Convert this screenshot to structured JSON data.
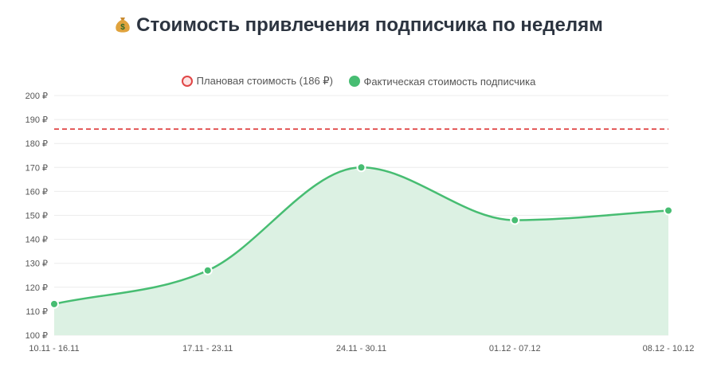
{
  "title": "Стоимость привлечения подписчика по неделям",
  "icons": {
    "title": "money-bag-icon"
  },
  "colors": {
    "plan": "#e04646",
    "fact": "#47bd72",
    "fact_fill": "#dcf1e3",
    "grid": "#ececec"
  },
  "chart_data": {
    "type": "line",
    "title": "Стоимость привлечения подписчика по неделям",
    "categories": [
      "10.11 - 16.11",
      "17.11 - 23.11",
      "24.11 - 30.11",
      "01.12 - 07.12",
      "08.12 - 10.12"
    ],
    "series": [
      {
        "name": "Фактическая стоимость подписчика",
        "values": [
          113,
          127,
          170,
          148,
          152
        ],
        "style": "smooth-area"
      }
    ],
    "reference_lines": [
      {
        "name": "Плановая стоимость (186 ₽)",
        "value": 186,
        "style": "dashed"
      }
    ],
    "ylim": [
      100,
      200
    ],
    "yticks": [
      100,
      110,
      120,
      130,
      140,
      150,
      160,
      170,
      180,
      190,
      200
    ],
    "y_tick_suffix": " ₽",
    "grid": true,
    "legend_position": "top-center"
  }
}
